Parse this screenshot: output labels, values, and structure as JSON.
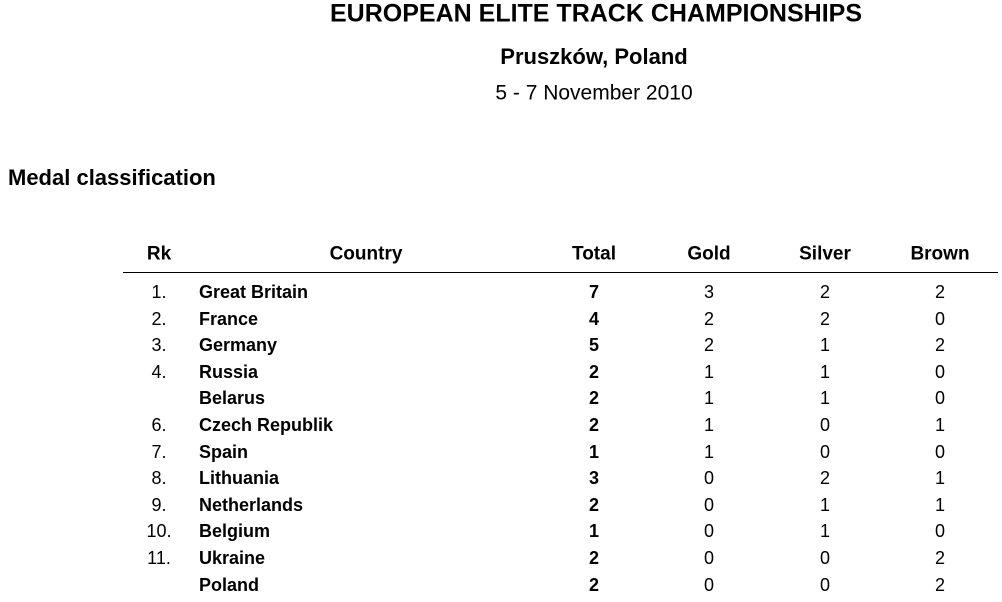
{
  "header": {
    "title": "EUROPEAN ELITE TRACK CHAMPIONSHIPS",
    "place": "Pruszków, Poland",
    "date": "5 - 7 November 2010"
  },
  "section_title": "Medal classification",
  "table": {
    "columns": [
      "Rk",
      "Country",
      "Total",
      "Gold",
      "Silver",
      "Brown"
    ],
    "rows": [
      [
        "1.",
        "Great Britain",
        7,
        3,
        2,
        2
      ],
      [
        "2.",
        "France",
        4,
        2,
        2,
        0
      ],
      [
        "3.",
        "Germany",
        5,
        2,
        1,
        2
      ],
      [
        "4.",
        "Russia",
        2,
        1,
        1,
        0
      ],
      [
        null,
        "Belarus",
        2,
        1,
        1,
        0
      ],
      [
        "6.",
        "Czech Republik",
        2,
        1,
        0,
        1
      ],
      [
        "7.",
        "Spain",
        1,
        1,
        0,
        0
      ],
      [
        "8.",
        "Lithuania",
        3,
        0,
        2,
        1
      ],
      [
        "9.",
        "Netherlands",
        2,
        0,
        1,
        1
      ],
      [
        "10.",
        "Belgium",
        1,
        0,
        1,
        0
      ],
      [
        "11.",
        "Ukraine",
        2,
        0,
        0,
        2
      ],
      [
        null,
        "Poland",
        2,
        0,
        0,
        2
      ]
    ]
  }
}
